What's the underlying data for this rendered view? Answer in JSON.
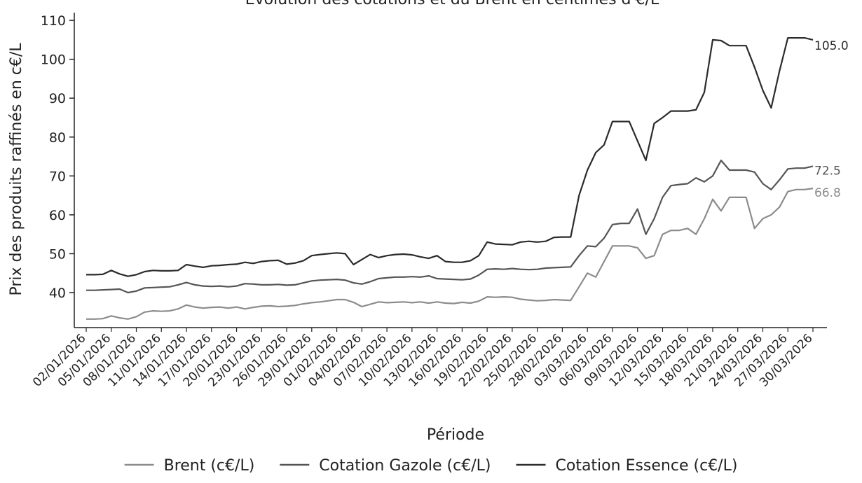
{
  "chart_data": {
    "type": "line",
    "title": "Évolution des cotations et du Brent en centimes d'€/L",
    "xlabel": "Période",
    "ylabel": "Prix des produits raffinés en c€/L",
    "ylim": [
      31,
      112
    ],
    "yticks": [
      40,
      50,
      60,
      70,
      80,
      90,
      100,
      110
    ],
    "x_tick_labels": [
      "02/01/2026",
      "05/01/2026",
      "08/01/2026",
      "11/01/2026",
      "14/01/2026",
      "17/01/2026",
      "20/01/2026",
      "23/01/2026",
      "26/01/2026",
      "29/01/2026",
      "01/02/2026",
      "04/02/2026",
      "07/02/2026",
      "10/02/2026",
      "13/02/2026",
      "16/02/2026",
      "19/02/2026",
      "22/02/2026",
      "25/02/2026",
      "28/02/2026",
      "03/03/2026",
      "06/03/2026",
      "09/03/2026",
      "12/03/2026",
      "15/03/2026",
      "18/03/2026",
      "21/03/2026",
      "24/03/2026",
      "27/03/2026",
      "30/03/2026"
    ],
    "grid": false,
    "legend_position": "bottom",
    "series": [
      {
        "name": "Brent (c€/L)",
        "color": "#8c8c8c",
        "end_label": "66.8",
        "points": [
          [
            "02/01/2026",
            33.2
          ],
          [
            "03/01/2026",
            33.2
          ],
          [
            "04/01/2026",
            33.3
          ],
          [
            "05/01/2026",
            34.0
          ],
          [
            "06/01/2026",
            33.5
          ],
          [
            "07/01/2026",
            33.2
          ],
          [
            "08/01/2026",
            33.8
          ],
          [
            "09/01/2026",
            35.0
          ],
          [
            "10/01/2026",
            35.3
          ],
          [
            "11/01/2026",
            35.2
          ],
          [
            "12/01/2026",
            35.3
          ],
          [
            "13/01/2026",
            35.8
          ],
          [
            "14/01/2026",
            36.8
          ],
          [
            "15/01/2026",
            36.3
          ],
          [
            "16/01/2026",
            36.0
          ],
          [
            "17/01/2026",
            36.2
          ],
          [
            "18/01/2026",
            36.3
          ],
          [
            "19/01/2026",
            36.0
          ],
          [
            "20/01/2026",
            36.3
          ],
          [
            "21/01/2026",
            35.8
          ],
          [
            "22/01/2026",
            36.2
          ],
          [
            "23/01/2026",
            36.5
          ],
          [
            "24/01/2026",
            36.6
          ],
          [
            "25/01/2026",
            36.4
          ],
          [
            "26/01/2026",
            36.5
          ],
          [
            "27/01/2026",
            36.7
          ],
          [
            "28/01/2026",
            37.1
          ],
          [
            "29/01/2026",
            37.4
          ],
          [
            "30/01/2026",
            37.6
          ],
          [
            "31/01/2026",
            37.9
          ],
          [
            "01/02/2026",
            38.2
          ],
          [
            "02/02/2026",
            38.2
          ],
          [
            "03/02/2026",
            37.5
          ],
          [
            "04/02/2026",
            36.4
          ],
          [
            "05/02/2026",
            37.0
          ],
          [
            "06/02/2026",
            37.6
          ],
          [
            "07/02/2026",
            37.4
          ],
          [
            "08/02/2026",
            37.5
          ],
          [
            "09/02/2026",
            37.6
          ],
          [
            "10/02/2026",
            37.4
          ],
          [
            "11/02/2026",
            37.6
          ],
          [
            "12/02/2026",
            37.3
          ],
          [
            "13/02/2026",
            37.6
          ],
          [
            "14/02/2026",
            37.3
          ],
          [
            "15/02/2026",
            37.2
          ],
          [
            "16/02/2026",
            37.5
          ],
          [
            "17/02/2026",
            37.3
          ],
          [
            "18/02/2026",
            37.8
          ],
          [
            "19/02/2026",
            38.9
          ],
          [
            "20/02/2026",
            38.8
          ],
          [
            "21/02/2026",
            38.9
          ],
          [
            "22/02/2026",
            38.8
          ],
          [
            "23/02/2026",
            38.3
          ],
          [
            "24/02/2026",
            38.1
          ],
          [
            "25/02/2026",
            37.9
          ],
          [
            "26/02/2026",
            38.0
          ],
          [
            "27/02/2026",
            38.2
          ],
          [
            "28/02/2026",
            38.1
          ],
          [
            "01/03/2026",
            38.0
          ],
          [
            "02/03/2026",
            41.5
          ],
          [
            "03/03/2026",
            45.0
          ],
          [
            "04/03/2026",
            44.0
          ],
          [
            "05/03/2026",
            48.0
          ],
          [
            "06/03/2026",
            52.0
          ],
          [
            "07/03/2026",
            52.0
          ],
          [
            "08/03/2026",
            52.0
          ],
          [
            "09/03/2026",
            51.5
          ],
          [
            "10/03/2026",
            48.8
          ],
          [
            "11/03/2026",
            49.5
          ],
          [
            "12/03/2026",
            55.0
          ],
          [
            "13/03/2026",
            56.0
          ],
          [
            "14/03/2026",
            56.0
          ],
          [
            "15/03/2026",
            56.5
          ],
          [
            "16/03/2026",
            55.0
          ],
          [
            "17/03/2026",
            59.0
          ],
          [
            "18/03/2026",
            64.0
          ],
          [
            "19/03/2026",
            61.0
          ],
          [
            "20/03/2026",
            64.5
          ],
          [
            "21/03/2026",
            64.5
          ],
          [
            "22/03/2026",
            64.5
          ],
          [
            "23/03/2026",
            56.5
          ],
          [
            "24/03/2026",
            59.0
          ],
          [
            "25/03/2026",
            60.0
          ],
          [
            "26/03/2026",
            62.0
          ],
          [
            "27/03/2026",
            66.0
          ],
          [
            "28/03/2026",
            66.5
          ],
          [
            "29/03/2026",
            66.5
          ],
          [
            "30/03/2026",
            66.8
          ]
        ]
      },
      {
        "name": "Cotation Gazole (c€/L)",
        "color": "#555555",
        "end_label": "72.5",
        "points": [
          [
            "02/01/2026",
            40.6
          ],
          [
            "03/01/2026",
            40.6
          ],
          [
            "04/01/2026",
            40.7
          ],
          [
            "05/01/2026",
            40.8
          ],
          [
            "06/01/2026",
            40.9
          ],
          [
            "07/01/2026",
            40.0
          ],
          [
            "08/01/2026",
            40.4
          ],
          [
            "09/01/2026",
            41.2
          ],
          [
            "10/01/2026",
            41.3
          ],
          [
            "11/01/2026",
            41.4
          ],
          [
            "12/01/2026",
            41.5
          ],
          [
            "13/01/2026",
            42.0
          ],
          [
            "14/01/2026",
            42.6
          ],
          [
            "15/01/2026",
            42.0
          ],
          [
            "16/01/2026",
            41.7
          ],
          [
            "17/01/2026",
            41.6
          ],
          [
            "18/01/2026",
            41.7
          ],
          [
            "19/01/2026",
            41.5
          ],
          [
            "20/01/2026",
            41.7
          ],
          [
            "21/01/2026",
            42.3
          ],
          [
            "22/01/2026",
            42.2
          ],
          [
            "23/01/2026",
            42.0
          ],
          [
            "24/01/2026",
            42.0
          ],
          [
            "25/01/2026",
            42.1
          ],
          [
            "26/01/2026",
            41.9
          ],
          [
            "27/01/2026",
            42.0
          ],
          [
            "28/01/2026",
            42.5
          ],
          [
            "29/01/2026",
            43.0
          ],
          [
            "30/01/2026",
            43.2
          ],
          [
            "31/01/2026",
            43.3
          ],
          [
            "01/02/2026",
            43.4
          ],
          [
            "02/02/2026",
            43.2
          ],
          [
            "03/02/2026",
            42.5
          ],
          [
            "04/02/2026",
            42.2
          ],
          [
            "05/02/2026",
            42.8
          ],
          [
            "06/02/2026",
            43.6
          ],
          [
            "07/02/2026",
            43.8
          ],
          [
            "08/02/2026",
            44.0
          ],
          [
            "09/02/2026",
            44.0
          ],
          [
            "10/02/2026",
            44.1
          ],
          [
            "11/02/2026",
            44.0
          ],
          [
            "12/02/2026",
            44.3
          ],
          [
            "13/02/2026",
            43.6
          ],
          [
            "14/02/2026",
            43.5
          ],
          [
            "15/02/2026",
            43.4
          ],
          [
            "16/02/2026",
            43.3
          ],
          [
            "17/02/2026",
            43.5
          ],
          [
            "18/02/2026",
            44.5
          ],
          [
            "19/02/2026",
            46.0
          ],
          [
            "20/02/2026",
            46.1
          ],
          [
            "21/02/2026",
            46.0
          ],
          [
            "22/02/2026",
            46.2
          ],
          [
            "23/02/2026",
            46.0
          ],
          [
            "24/02/2026",
            45.9
          ],
          [
            "25/02/2026",
            46.0
          ],
          [
            "26/02/2026",
            46.3
          ],
          [
            "27/02/2026",
            46.4
          ],
          [
            "28/02/2026",
            46.5
          ],
          [
            "01/03/2026",
            46.6
          ],
          [
            "02/03/2026",
            49.5
          ],
          [
            "03/03/2026",
            52.0
          ],
          [
            "04/03/2026",
            51.8
          ],
          [
            "05/03/2026",
            54.0
          ],
          [
            "06/03/2026",
            57.5
          ],
          [
            "07/03/2026",
            57.8
          ],
          [
            "08/03/2026",
            57.8
          ],
          [
            "09/03/2026",
            61.5
          ],
          [
            "10/03/2026",
            55.0
          ],
          [
            "11/03/2026",
            59.0
          ],
          [
            "12/03/2026",
            64.5
          ],
          [
            "13/03/2026",
            67.5
          ],
          [
            "14/03/2026",
            67.8
          ],
          [
            "15/03/2026",
            68.0
          ],
          [
            "16/03/2026",
            69.5
          ],
          [
            "17/03/2026",
            68.5
          ],
          [
            "18/03/2026",
            70.0
          ],
          [
            "19/03/2026",
            74.0
          ],
          [
            "20/03/2026",
            71.5
          ],
          [
            "21/03/2026",
            71.5
          ],
          [
            "22/03/2026",
            71.5
          ],
          [
            "23/03/2026",
            71.0
          ],
          [
            "24/03/2026",
            68.0
          ],
          [
            "25/03/2026",
            66.5
          ],
          [
            "26/03/2026",
            69.0
          ],
          [
            "27/03/2026",
            71.8
          ],
          [
            "28/03/2026",
            72.0
          ],
          [
            "29/03/2026",
            72.0
          ],
          [
            "30/03/2026",
            72.5
          ]
        ]
      },
      {
        "name": "Cotation Essence (c€/L)",
        "color": "#2b2b2b",
        "end_label": "105.0",
        "points": [
          [
            "02/01/2026",
            44.6
          ],
          [
            "03/01/2026",
            44.6
          ],
          [
            "04/01/2026",
            44.7
          ],
          [
            "05/01/2026",
            45.7
          ],
          [
            "06/01/2026",
            44.8
          ],
          [
            "07/01/2026",
            44.2
          ],
          [
            "08/01/2026",
            44.6
          ],
          [
            "09/01/2026",
            45.4
          ],
          [
            "10/01/2026",
            45.7
          ],
          [
            "11/01/2026",
            45.6
          ],
          [
            "12/01/2026",
            45.6
          ],
          [
            "13/01/2026",
            45.7
          ],
          [
            "14/01/2026",
            47.2
          ],
          [
            "15/01/2026",
            46.8
          ],
          [
            "16/01/2026",
            46.5
          ],
          [
            "17/01/2026",
            46.9
          ],
          [
            "18/01/2026",
            47.0
          ],
          [
            "19/01/2026",
            47.2
          ],
          [
            "20/01/2026",
            47.3
          ],
          [
            "21/01/2026",
            47.8
          ],
          [
            "22/01/2026",
            47.5
          ],
          [
            "23/01/2026",
            48.0
          ],
          [
            "24/01/2026",
            48.2
          ],
          [
            "25/01/2026",
            48.3
          ],
          [
            "26/01/2026",
            47.3
          ],
          [
            "27/01/2026",
            47.6
          ],
          [
            "28/01/2026",
            48.2
          ],
          [
            "29/01/2026",
            49.5
          ],
          [
            "30/01/2026",
            49.8
          ],
          [
            "31/01/2026",
            50.0
          ],
          [
            "01/02/2026",
            50.2
          ],
          [
            "02/02/2026",
            50.0
          ],
          [
            "03/02/2026",
            47.2
          ],
          [
            "04/02/2026",
            48.5
          ],
          [
            "05/02/2026",
            49.8
          ],
          [
            "06/02/2026",
            49.0
          ],
          [
            "07/02/2026",
            49.5
          ],
          [
            "08/02/2026",
            49.8
          ],
          [
            "09/02/2026",
            49.9
          ],
          [
            "10/02/2026",
            49.7
          ],
          [
            "11/02/2026",
            49.2
          ],
          [
            "12/02/2026",
            48.8
          ],
          [
            "13/02/2026",
            49.5
          ],
          [
            "14/02/2026",
            48.0
          ],
          [
            "15/02/2026",
            47.8
          ],
          [
            "16/02/2026",
            47.8
          ],
          [
            "17/02/2026",
            48.2
          ],
          [
            "18/02/2026",
            49.5
          ],
          [
            "19/02/2026",
            53.0
          ],
          [
            "20/02/2026",
            52.5
          ],
          [
            "21/02/2026",
            52.4
          ],
          [
            "22/02/2026",
            52.3
          ],
          [
            "23/02/2026",
            53.0
          ],
          [
            "24/02/2026",
            53.2
          ],
          [
            "25/02/2026",
            53.0
          ],
          [
            "26/02/2026",
            53.2
          ],
          [
            "27/02/2026",
            54.2
          ],
          [
            "28/02/2026",
            54.3
          ],
          [
            "01/03/2026",
            54.3
          ],
          [
            "02/03/2026",
            65.0
          ],
          [
            "03/03/2026",
            71.5
          ],
          [
            "04/03/2026",
            76.0
          ],
          [
            "05/03/2026",
            78.0
          ],
          [
            "06/03/2026",
            84.0
          ],
          [
            "07/03/2026",
            84.0
          ],
          [
            "08/03/2026",
            84.0
          ],
          [
            "09/03/2026",
            79.0
          ],
          [
            "10/03/2026",
            74.0
          ],
          [
            "11/03/2026",
            83.5
          ],
          [
            "12/03/2026",
            85.0
          ],
          [
            "13/03/2026",
            86.7
          ],
          [
            "14/03/2026",
            86.7
          ],
          [
            "15/03/2026",
            86.7
          ],
          [
            "16/03/2026",
            87.0
          ],
          [
            "17/03/2026",
            91.5
          ],
          [
            "18/03/2026",
            105.0
          ],
          [
            "19/03/2026",
            104.8
          ],
          [
            "20/03/2026",
            103.5
          ],
          [
            "21/03/2026",
            103.5
          ],
          [
            "22/03/2026",
            103.5
          ],
          [
            "23/03/2026",
            98.0
          ],
          [
            "24/03/2026",
            92.0
          ],
          [
            "25/03/2026",
            87.5
          ],
          [
            "26/03/2026",
            97.0
          ],
          [
            "27/03/2026",
            105.5
          ],
          [
            "28/03/2026",
            105.5
          ],
          [
            "29/03/2026",
            105.5
          ],
          [
            "30/03/2026",
            105.0
          ]
        ]
      }
    ]
  }
}
